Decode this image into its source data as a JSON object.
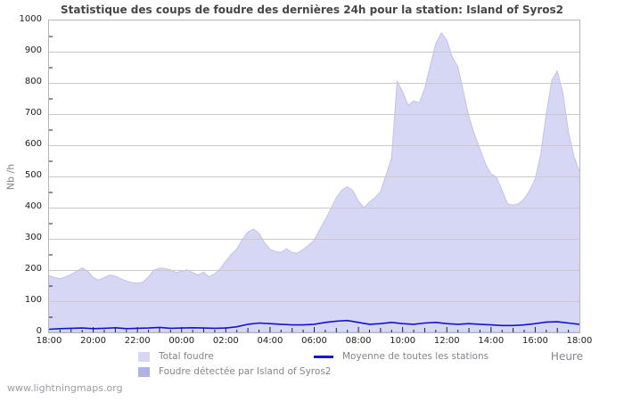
{
  "page": {
    "watermark": "www.lightningmaps.org"
  },
  "chart_data": {
    "type": "area",
    "title": "Statistique des coups de foudre des dernières 24h pour la station: Island of Syros2",
    "xlabel": "Heure",
    "ylabel": "Nb /h",
    "ylim": [
      0,
      1000
    ],
    "y_tick_step": 100,
    "grid": true,
    "legend_position": "bottom",
    "x_total_minutes": 1440,
    "x_tick_minutes": [
      0,
      120,
      240,
      360,
      480,
      600,
      720,
      840,
      960,
      1080,
      1200,
      1320,
      1440
    ],
    "x_tick_labels": [
      "18:00",
      "20:00",
      "22:00",
      "00:00",
      "02:00",
      "04:00",
      "06:00",
      "08:00",
      "10:00",
      "12:00",
      "14:00",
      "16:00",
      "18:00"
    ],
    "colors": {
      "grid": "#c9c9c9",
      "frame": "#b6b6b6",
      "tick": "#222222",
      "title": "#464646",
      "axis_text": "#1c1c1c",
      "muted_text": "#84848c"
    },
    "series": [
      {
        "name": "Total foudre",
        "kind": "area",
        "color": "#d6d6f5",
        "edge_color": "#c2c2ec",
        "x_step_minutes": 15,
        "values": [
          182,
          176,
          172,
          178,
          186,
          196,
          207,
          196,
          176,
          168,
          176,
          184,
          180,
          172,
          165,
          160,
          158,
          161,
          178,
          200,
          206,
          205,
          200,
          192,
          196,
          201,
          192,
          184,
          193,
          178,
          188,
          205,
          228,
          250,
          268,
          298,
          322,
          331,
          318,
          288,
          266,
          259,
          257,
          268,
          256,
          254,
          266,
          280,
          296,
          330,
          362,
          396,
          432,
          456,
          467,
          455,
          420,
          400,
          418,
          432,
          452,
          505,
          560,
          805,
          772,
          728,
          742,
          736,
          782,
          856,
          926,
          960,
          936,
          882,
          852,
          772,
          692,
          636,
          588,
          540,
          508,
          498,
          455,
          412,
          408,
          413,
          428,
          455,
          492,
          570,
          700,
          808,
          838,
          768,
          645,
          565,
          516
        ]
      },
      {
        "name": "Foudre détectée par Island of Syros2",
        "kind": "area",
        "color": "#b1b1ea",
        "edge_color": "#b1b1ea",
        "x_step_minutes": 30,
        "values": [
          0,
          0,
          0,
          0,
          0,
          0,
          0,
          0,
          0,
          0,
          0,
          0,
          0,
          0,
          0,
          0,
          0,
          0,
          0,
          0,
          0,
          0,
          0,
          0,
          0,
          0,
          0,
          0,
          0,
          0,
          0,
          0,
          0,
          0,
          0,
          0,
          0,
          0,
          0,
          0,
          0,
          0,
          0,
          0,
          0,
          0,
          0,
          0,
          0
        ]
      },
      {
        "name": "Moyenne de toutes les stations",
        "kind": "line",
        "color": "#1414cc",
        "x_step_minutes": 30,
        "values": [
          10,
          12,
          13,
          14,
          12,
          13,
          15,
          12,
          13,
          14,
          16,
          13,
          14,
          15,
          14,
          13,
          14,
          18,
          26,
          30,
          28,
          26,
          24,
          24,
          26,
          32,
          36,
          38,
          32,
          26,
          28,
          32,
          28,
          26,
          30,
          32,
          28,
          26,
          28,
          26,
          24,
          22,
          22,
          24,
          28,
          33,
          34,
          30,
          26
        ]
      }
    ]
  }
}
